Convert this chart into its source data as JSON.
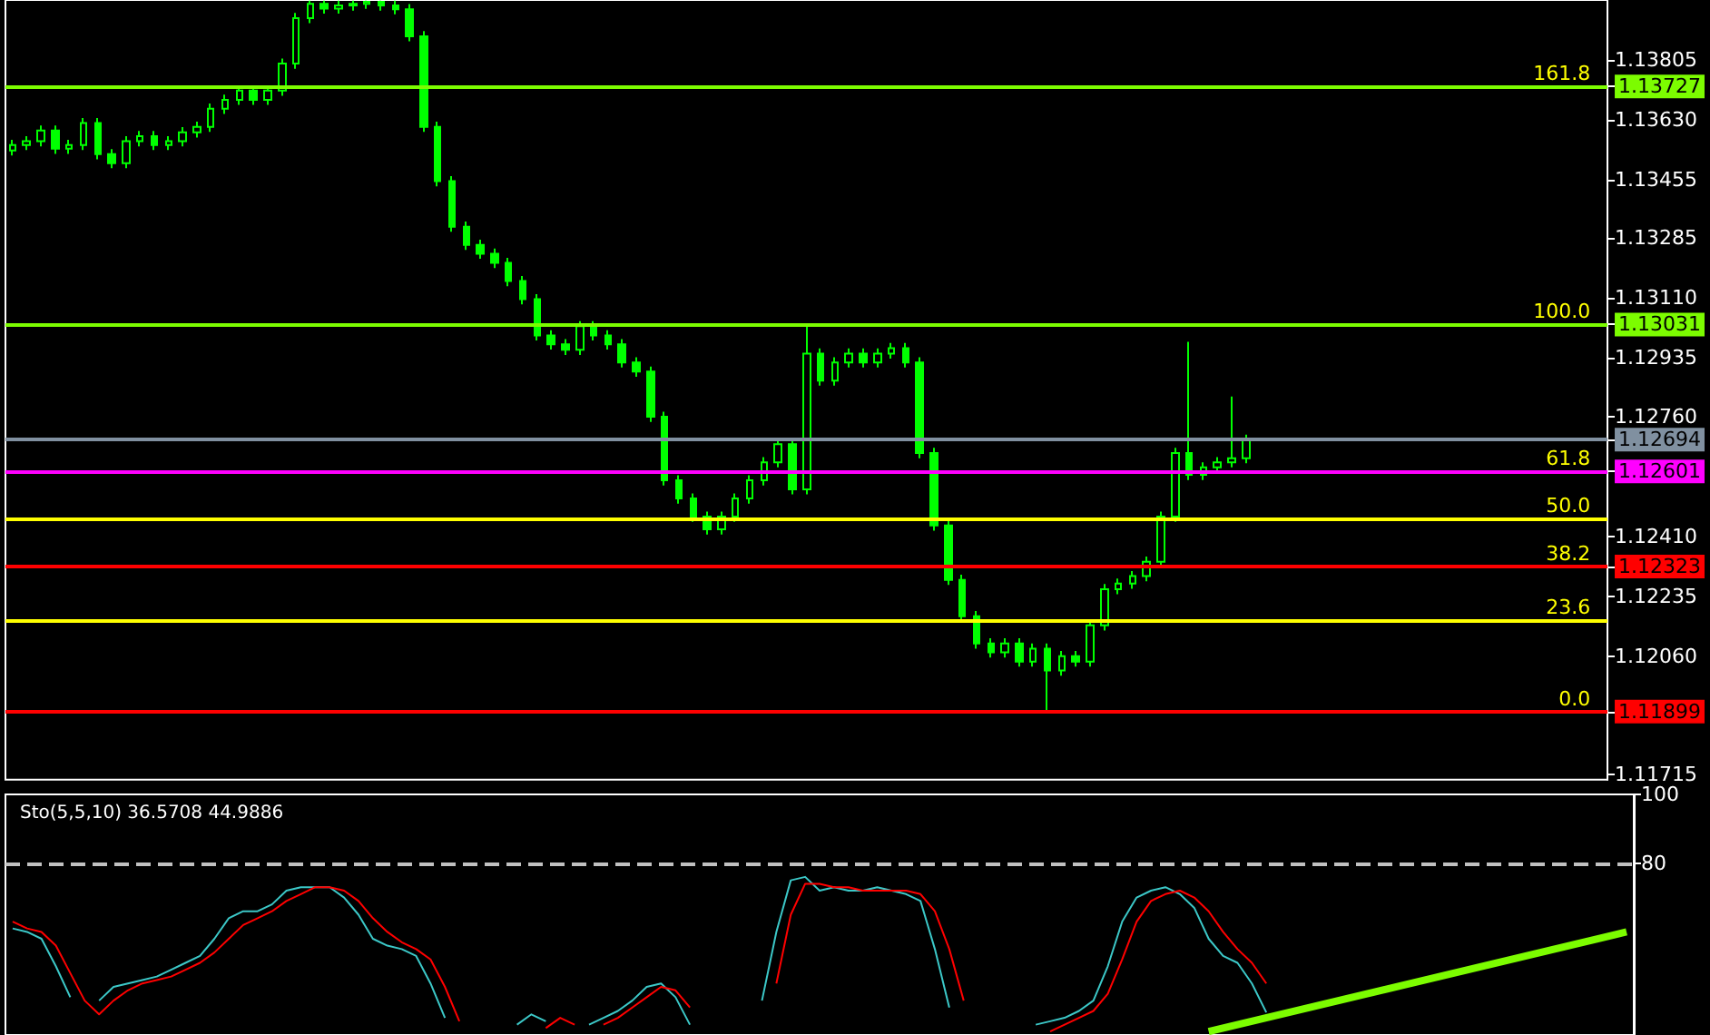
{
  "chart_data": [
    {
      "type": "candlestick",
      "categories": [
        null,
        null,
        null,
        null,
        null,
        null,
        null,
        null,
        null,
        null,
        null,
        null,
        null,
        null,
        null,
        null,
        null,
        null,
        null,
        null,
        null,
        null,
        null,
        null,
        null,
        null,
        null,
        null,
        null,
        null,
        null,
        null,
        null,
        null,
        null,
        null,
        null,
        null,
        null,
        null,
        null,
        null,
        null,
        null,
        null,
        null,
        null,
        null,
        null,
        null,
        null,
        null,
        null,
        null,
        null,
        null,
        null,
        null,
        null,
        null,
        null,
        null,
        null,
        null,
        null,
        null,
        null,
        null,
        null,
        null,
        null,
        null,
        null,
        null,
        null,
        null,
        null,
        null,
        null,
        null,
        null,
        null,
        null,
        null,
        null,
        null,
        null,
        null,
        null,
        null,
        null,
        null,
        null,
        null,
        null,
        null,
        null,
        null,
        null,
        null,
        null,
        null,
        null,
        null,
        null,
        null,
        null,
        null,
        null,
        null,
        null,
        null,
        null
      ],
      "series": [
        {
          "color": "#00ff00",
          "ohlc": [
            [
              1.1354,
              1.13571,
              1.13525,
              1.13556
            ],
            [
              1.13556,
              1.13582,
              1.13541,
              1.13567
            ],
            [
              1.13567,
              1.13613,
              1.13552,
              1.13598
            ],
            [
              1.13598,
              1.13613,
              1.1353,
              1.13545
            ],
            [
              1.13545,
              1.13571,
              1.1353,
              1.13556
            ],
            [
              1.13556,
              1.13635,
              1.13541,
              1.1362
            ],
            [
              1.1362,
              1.13635,
              1.13514,
              1.13529
            ],
            [
              1.13529,
              1.13544,
              1.13488,
              1.13503
            ],
            [
              1.13503,
              1.13582,
              1.13488,
              1.13567
            ],
            [
              1.13567,
              1.13597,
              1.13552,
              1.13582
            ],
            [
              1.13582,
              1.13597,
              1.13541,
              1.13556
            ],
            [
              1.13556,
              1.13582,
              1.13541,
              1.13567
            ],
            [
              1.13567,
              1.13608,
              1.13552,
              1.13593
            ],
            [
              1.13593,
              1.13624,
              1.13578,
              1.13609
            ],
            [
              1.13609,
              1.13677,
              1.13594,
              1.13662
            ],
            [
              1.13662,
              1.13703,
              1.13647,
              1.13688
            ],
            [
              1.13688,
              1.1373,
              1.13673,
              1.13715
            ],
            [
              1.13715,
              1.1373,
              1.13673,
              1.13688
            ],
            [
              1.13688,
              1.1373,
              1.13673,
              1.13715
            ],
            [
              1.13715,
              1.13809,
              1.137,
              1.13794
            ],
            [
              1.13794,
              1.13942,
              1.13779,
              1.13927
            ],
            [
              1.13927,
              1.13978,
              1.13912,
              1.13969
            ],
            [
              1.13969,
              1.13978,
              1.1394,
              1.13955
            ],
            [
              1.13955,
              1.13978,
              1.1394,
              1.13964
            ],
            [
              1.13964,
              1.13978,
              1.13949,
              1.13969
            ],
            [
              1.13969,
              1.13978,
              1.13954,
              1.13975
            ],
            [
              1.13975,
              1.13978,
              1.13949,
              1.13964
            ],
            [
              1.13964,
              1.13978,
              1.13938,
              1.13953
            ],
            [
              1.13953,
              1.13968,
              1.13859,
              1.13874
            ],
            [
              1.13874,
              1.13889,
              1.13594,
              1.13609
            ],
            [
              1.13609,
              1.13624,
              1.13435,
              1.1345
            ],
            [
              1.1345,
              1.13465,
              1.13302,
              1.13317
            ],
            [
              1.13317,
              1.13332,
              1.13249,
              1.13264
            ],
            [
              1.13264,
              1.13279,
              1.13223,
              1.13238
            ],
            [
              1.13238,
              1.13253,
              1.13196,
              1.13211
            ],
            [
              1.13211,
              1.13226,
              1.13143,
              1.13158
            ],
            [
              1.13158,
              1.13173,
              1.1309,
              1.13105
            ],
            [
              1.13105,
              1.1312,
              1.12984,
              1.12999
            ],
            [
              1.12999,
              1.13014,
              1.12958,
              1.12973
            ],
            [
              1.12973,
              1.12988,
              1.12942,
              1.12957
            ],
            [
              1.12957,
              1.13041,
              1.12942,
              1.13026
            ],
            [
              1.13026,
              1.13041,
              1.12984,
              1.12999
            ],
            [
              1.12999,
              1.13014,
              1.12958,
              1.12973
            ],
            [
              1.12973,
              1.12988,
              1.12905,
              1.1292
            ],
            [
              1.1292,
              1.12935,
              1.12878,
              1.12893
            ],
            [
              1.12893,
              1.12908,
              1.12746,
              1.12761
            ],
            [
              1.12761,
              1.12776,
              1.1256,
              1.12575
            ],
            [
              1.12575,
              1.1259,
              1.12507,
              1.12522
            ],
            [
              1.12522,
              1.12537,
              1.12454,
              1.12469
            ],
            [
              1.12469,
              1.12484,
              1.12417,
              1.12432
            ],
            [
              1.12432,
              1.12484,
              1.12417,
              1.12469
            ],
            [
              1.12469,
              1.12537,
              1.12454,
              1.12522
            ],
            [
              1.12522,
              1.1259,
              1.12507,
              1.12575
            ],
            [
              1.12575,
              1.12643,
              1.1256,
              1.12628
            ],
            [
              1.12628,
              1.12696,
              1.12613,
              1.12681
            ],
            [
              1.12681,
              1.12696,
              1.12534,
              1.12549
            ],
            [
              1.12549,
              1.13031,
              1.12534,
              1.12946
            ],
            [
              1.12946,
              1.12961,
              1.12852,
              1.12867
            ],
            [
              1.12867,
              1.12935,
              1.12852,
              1.1292
            ],
            [
              1.1292,
              1.12961,
              1.12905,
              1.12946
            ],
            [
              1.12946,
              1.12961,
              1.12905,
              1.1292
            ],
            [
              1.1292,
              1.12961,
              1.12905,
              1.12946
            ],
            [
              1.12946,
              1.12977,
              1.12931,
              1.12962
            ],
            [
              1.12962,
              1.12977,
              1.12905,
              1.1292
            ],
            [
              1.1292,
              1.12935,
              1.1264,
              1.12655
            ],
            [
              1.12655,
              1.1267,
              1.12428,
              1.12443
            ],
            [
              1.12443,
              1.12458,
              1.12269,
              1.12284
            ],
            [
              1.12284,
              1.12299,
              1.12163,
              1.12178
            ],
            [
              1.12178,
              1.12193,
              1.12083,
              1.12098
            ],
            [
              1.12098,
              1.12113,
              1.12057,
              1.12072
            ],
            [
              1.12072,
              1.12113,
              1.12057,
              1.12098
            ],
            [
              1.12098,
              1.12113,
              1.1203,
              1.12045
            ],
            [
              1.12045,
              1.12098,
              1.1203,
              1.12083
            ],
            [
              1.12083,
              1.12098,
              1.11899,
              1.12019
            ],
            [
              1.12019,
              1.12076,
              1.12004,
              1.12061
            ],
            [
              1.12061,
              1.12076,
              1.1203,
              1.12045
            ],
            [
              1.12045,
              1.12166,
              1.1203,
              1.12151
            ],
            [
              1.12151,
              1.12272,
              1.12136,
              1.12257
            ],
            [
              1.12257,
              1.12288,
              1.12242,
              1.12273
            ],
            [
              1.12273,
              1.1231,
              1.12258,
              1.12295
            ],
            [
              1.12295,
              1.12352,
              1.1228,
              1.12337
            ],
            [
              1.12337,
              1.12484,
              1.12322,
              1.12469
            ],
            [
              1.12469,
              1.1267,
              1.12454,
              1.12655
            ],
            [
              1.12655,
              1.1298,
              1.12576,
              1.12591
            ],
            [
              1.12591,
              1.12628,
              1.12576,
              1.12613
            ],
            [
              1.12613,
              1.12643,
              1.12598,
              1.12628
            ],
            [
              1.12628,
              1.1282,
              1.12613,
              1.1264
            ],
            [
              1.1264,
              1.12709,
              1.12625,
              1.12694
            ],
            null,
            null,
            null,
            null,
            null,
            null,
            null,
            null,
            null,
            null,
            null,
            null,
            null,
            null,
            null,
            null,
            null,
            null,
            null,
            null,
            null,
            null,
            null,
            null,
            null
          ]
        }
      ],
      "ylim": [
        1.117,
        1.1398
      ],
      "yticks": [
        1.13805,
        1.13727,
        {
          "value": 1.1363,
          "label": "1.13630"
        },
        1.13455,
        1.13285,
        {
          "value": 1.1311,
          "label": "1.13110"
        },
        1.13031,
        1.12935,
        {
          "value": 1.1276,
          "label": "1.12760"
        },
        1.12694,
        1.12601,
        {
          "value": 1.1241,
          "label": "1.12410"
        },
        1.12323,
        1.12235,
        {
          "value": 1.1206,
          "label": "1.12060"
        },
        1.11899,
        1.11715
      ],
      "ref_lines": [
        {
          "axis": "y",
          "value": 1.13727,
          "color": "#7cfc00"
        },
        {
          "axis": "y",
          "value": 1.13031,
          "color": "#7cfc00"
        },
        {
          "axis": "y",
          "value": 1.12694,
          "color": "#8090a0"
        },
        {
          "axis": "y",
          "value": 1.12601,
          "color": "#ff00ff"
        },
        {
          "axis": "y",
          "value": 1.12465,
          "color": "#ffff00"
        },
        {
          "axis": "y",
          "value": 1.12323,
          "color": "#ff0000"
        },
        {
          "axis": "y",
          "value": 1.12166,
          "color": "#ffff00"
        },
        {
          "axis": "y",
          "value": 1.11899,
          "color": "#ff0000"
        }
      ],
      "annotations": [
        {
          "text": "161.8",
          "y": 1.13727
        },
        {
          "text": "100.0",
          "y": 1.13031
        },
        {
          "text": "61.8",
          "y": 1.12601
        },
        {
          "text": "50.0",
          "y": 1.12465
        },
        {
          "text": "38.2",
          "y": 1.12323
        },
        {
          "text": "23.6",
          "y": 1.12166
        },
        {
          "text": "0.0",
          "y": 1.11899
        }
      ],
      "tick_labels": "y"
    },
    {
      "type": "line",
      "title": "Sto(5,5,10) 36.5708 44.9886",
      "categories": [
        null,
        null,
        null,
        null,
        null,
        null,
        null,
        null,
        null,
        null,
        null,
        null,
        null,
        null,
        null,
        null,
        null,
        null,
        null,
        null,
        null,
        null,
        null,
        null,
        null,
        null,
        null,
        null,
        null,
        null,
        null,
        null,
        null,
        null,
        null,
        null,
        null,
        null,
        null,
        null,
        null,
        null,
        null,
        null,
        null,
        null,
        null,
        null,
        null,
        null,
        null,
        null,
        null,
        null,
        null,
        null,
        null,
        null,
        null,
        null,
        null,
        null,
        null,
        null,
        null,
        null,
        null,
        null,
        null,
        null,
        null,
        null,
        null,
        null,
        null,
        null,
        null,
        null,
        null,
        null,
        null,
        null,
        null,
        null,
        null,
        null,
        null,
        null,
        null,
        null,
        null,
        null,
        null,
        null,
        null,
        null,
        null,
        null,
        null,
        null,
        null,
        null,
        null,
        null,
        null,
        null,
        null,
        null,
        null,
        null,
        null,
        null,
        null
      ],
      "series": [
        {
          "color": "#3cc8c8",
          "values": [
            61,
            60,
            58,
            50,
            41,
            null,
            40,
            44,
            45,
            46,
            47,
            49,
            51,
            53,
            58,
            64,
            66,
            66,
            68,
            72,
            73,
            73,
            73,
            70,
            65,
            58,
            56,
            55,
            53,
            45,
            35,
            null,
            null,
            null,
            null,
            33,
            36,
            34,
            null,
            null,
            33,
            35,
            37,
            40,
            44,
            45,
            41,
            33,
            null,
            null,
            null,
            null,
            40,
            60,
            75,
            76,
            72,
            73,
            72,
            72,
            73,
            72,
            71,
            69,
            55,
            38,
            null,
            null,
            null,
            null,
            null,
            33,
            34,
            35,
            37,
            40,
            50,
            63,
            70,
            72,
            73,
            71,
            67,
            58,
            53,
            51,
            45,
            36.5708,
            null,
            null,
            null,
            null,
            null,
            null,
            null,
            null,
            null,
            null,
            null,
            null,
            null,
            null,
            null,
            null,
            null,
            null,
            null,
            null,
            null,
            null,
            null,
            null,
            null
          ]
        },
        {
          "color": "#ff0000",
          "values": [
            63,
            61,
            60,
            56,
            48,
            40,
            36,
            40,
            43,
            45,
            46,
            47,
            49,
            51,
            54,
            58,
            62,
            64,
            66,
            69,
            71,
            73,
            73,
            72,
            69,
            64,
            60,
            57,
            55,
            52,
            44,
            34,
            null,
            null,
            null,
            null,
            null,
            32,
            35,
            33,
            null,
            33,
            35,
            38,
            41,
            44,
            43,
            38,
            null,
            null,
            null,
            null,
            null,
            45,
            65,
            74,
            74,
            73,
            73,
            72,
            72,
            72,
            72,
            71,
            66,
            55,
            40,
            null,
            null,
            null,
            null,
            null,
            31,
            33,
            35,
            37,
            42,
            52,
            63,
            69,
            71,
            72,
            70,
            66,
            60,
            55,
            51,
            44.9886,
            null,
            null,
            null,
            null,
            null,
            null,
            null,
            null,
            null,
            null,
            null,
            null,
            null,
            null,
            null,
            null,
            null,
            null,
            null,
            null,
            null,
            null,
            null,
            null,
            null
          ]
        },
        {
          "color": "#7cfc00",
          "values": [
            null,
            null,
            null,
            null,
            null,
            null,
            null,
            null,
            null,
            null,
            null,
            null,
            null,
            null,
            null,
            null,
            null,
            null,
            null,
            null,
            null,
            null,
            null,
            null,
            null,
            null,
            null,
            null,
            null,
            null,
            null,
            null,
            null,
            null,
            null,
            null,
            null,
            null,
            null,
            null,
            null,
            null,
            null,
            null,
            null,
            null,
            null,
            null,
            null,
            null,
            null,
            null,
            null,
            null,
            null,
            null,
            null,
            null,
            null,
            null,
            null,
            null,
            null,
            null,
            null,
            null,
            null,
            null,
            null,
            null,
            null,
            null,
            null,
            null,
            null,
            null,
            null,
            null,
            null,
            null,
            null,
            null,
            null,
            31,
            null,
            null,
            null,
            null,
            null,
            null,
            null,
            null,
            null,
            null,
            null,
            null,
            null,
            null,
            null,
            null,
            null,
            null,
            null,
            null,
            null,
            null,
            null,
            null,
            null,
            null,
            null,
            null,
            60
          ]
        }
      ],
      "ylim": [
        30,
        100
      ],
      "yticks": [
        80,
        100
      ],
      "ref_lines": [
        {
          "axis": "y",
          "value": 80,
          "color": "#c0c0c0",
          "line_style": "dashed"
        }
      ],
      "tick_labels": "y"
    }
  ]
}
